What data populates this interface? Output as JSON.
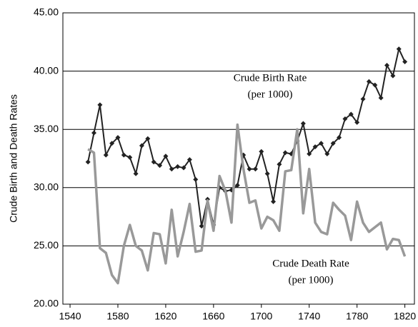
{
  "chart_data": {
    "type": "line",
    "y_label": "Crude Birth and Death Rates",
    "annotations": [
      {
        "lines": [
          "Crude Birth Rate",
          "(per 1000)"
        ]
      },
      {
        "lines": [
          "Crude Death Rate",
          "(per 1000)"
        ]
      }
    ],
    "x": [
      1555,
      1560,
      1565,
      1570,
      1575,
      1580,
      1585,
      1590,
      1595,
      1600,
      1605,
      1610,
      1615,
      1620,
      1625,
      1630,
      1635,
      1640,
      1645,
      1650,
      1655,
      1660,
      1665,
      1670,
      1675,
      1680,
      1685,
      1690,
      1695,
      1700,
      1705,
      1710,
      1715,
      1720,
      1725,
      1730,
      1735,
      1740,
      1745,
      1750,
      1755,
      1760,
      1765,
      1770,
      1775,
      1780,
      1785,
      1790,
      1795,
      1800,
      1805,
      1810,
      1815,
      1820
    ],
    "series": [
      {
        "color": "#222222",
        "markers": true,
        "values": [
          32.2,
          34.7,
          37.1,
          32.8,
          33.8,
          34.3,
          32.8,
          32.6,
          31.2,
          33.6,
          34.2,
          32.2,
          31.9,
          32.7,
          31.6,
          31.8,
          31.7,
          32.4,
          30.7,
          26.7,
          29.0,
          26.8,
          30.0,
          29.7,
          29.8,
          30.2,
          32.8,
          31.6,
          31.6,
          33.1,
          31.2,
          28.8,
          32.0,
          33.0,
          32.9,
          34.0,
          35.5,
          32.9,
          33.5,
          33.8,
          32.9,
          33.8,
          34.3,
          35.9,
          36.3,
          35.6,
          37.6,
          39.1,
          38.8,
          37.7,
          40.5,
          39.6,
          41.9,
          40.8
        ]
      },
      {
        "color": "#999999",
        "markers": false,
        "values": [
          33.3,
          33.0,
          24.8,
          24.4,
          22.5,
          21.8,
          25.0,
          26.8,
          25.0,
          24.6,
          22.9,
          26.1,
          26.0,
          23.5,
          28.1,
          24.1,
          26.2,
          28.6,
          24.5,
          24.6,
          28.9,
          26.3,
          31.0,
          29.7,
          27.0,
          35.4,
          31.6,
          28.7,
          28.9,
          26.5,
          27.5,
          27.2,
          26.3,
          31.4,
          31.5,
          35.0,
          27.8,
          31.6,
          27.0,
          26.2,
          26.0,
          28.7,
          28.1,
          27.6,
          25.5,
          28.8,
          27.0,
          26.2,
          26.6,
          27.0,
          24.7,
          25.6,
          25.5,
          24.1
        ]
      }
    ],
    "xlim": [
      1534,
      1828
    ],
    "xticks": [
      1540,
      1580,
      1620,
      1660,
      1700,
      1740,
      1780,
      1820
    ],
    "ylim": [
      20,
      45
    ],
    "yticks": [
      {
        "value": 20,
        "label": "20.00"
      },
      {
        "value": 25,
        "label": "25.00"
      },
      {
        "value": 30,
        "label": "30.00"
      },
      {
        "value": 35,
        "label": "35.00"
      },
      {
        "value": 40,
        "label": "40.00"
      },
      {
        "value": 45,
        "label": "45.00"
      }
    ],
    "grid": true
  }
}
